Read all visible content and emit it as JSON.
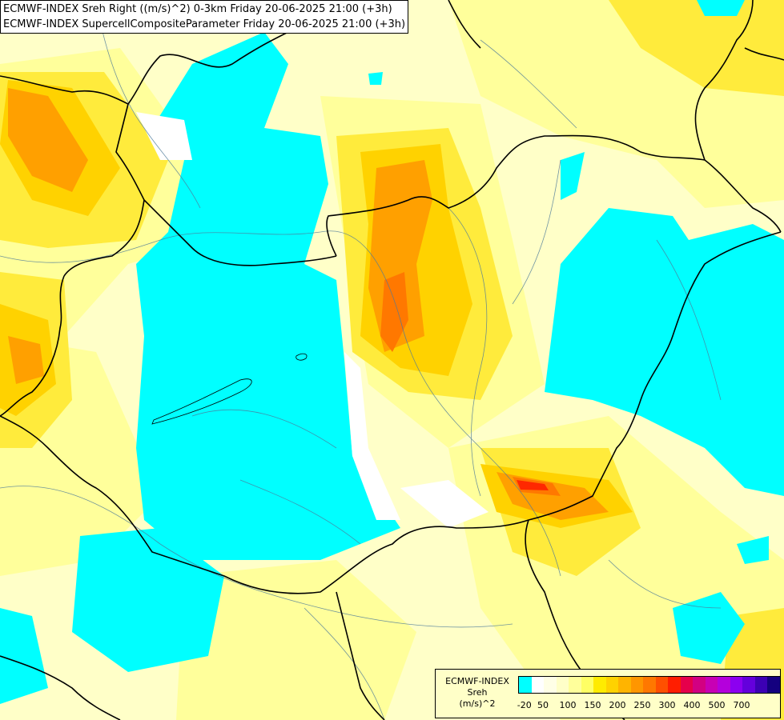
{
  "title": {
    "line1": "ECMWF-INDEX Sreh Right ((m/s)^2) 0-3km Friday 20-06-2025 21:00 (+3h)",
    "line2": "ECMWF-INDEX SupercellCompositeParameter Friday 20-06-2025 21:00 (+3h)"
  },
  "legend": {
    "model": "ECMWF-INDEX",
    "variable": "Sreh",
    "unit": "(m/s)^2",
    "colors": [
      "#00ffff",
      "#ffffff",
      "#ffffe6",
      "#ffffc8",
      "#ffff9b",
      "#ffff64",
      "#ffeb00",
      "#ffd200",
      "#ffb400",
      "#ff9600",
      "#ff7800",
      "#ff5000",
      "#ff1e00",
      "#e6004b",
      "#d20082",
      "#c800b4",
      "#b400dc",
      "#8c00f0",
      "#6400dc",
      "#3c00b4",
      "#14007f"
    ],
    "ticks": [
      {
        "label": "-20",
        "pos": 0.5
      },
      {
        "label": "50",
        "pos": 2
      },
      {
        "label": "100",
        "pos": 4
      },
      {
        "label": "150",
        "pos": 6
      },
      {
        "label": "200",
        "pos": 8
      },
      {
        "label": "250",
        "pos": 10
      },
      {
        "label": "300",
        "pos": 12
      },
      {
        "label": "400",
        "pos": 14
      },
      {
        "label": "500",
        "pos": 16
      },
      {
        "label": "700",
        "pos": 18
      }
    ]
  },
  "colors": {
    "cyan": "#00ffff",
    "pale": "#ffffc8",
    "light_yellow": "#ffff9b",
    "yellow": "#ffeb3c",
    "gold": "#ffd200",
    "orange": "#ffa000",
    "dark_orange": "#ff7800",
    "red": "#ff2800",
    "border": "#000000",
    "river": "#4d7a9a"
  }
}
